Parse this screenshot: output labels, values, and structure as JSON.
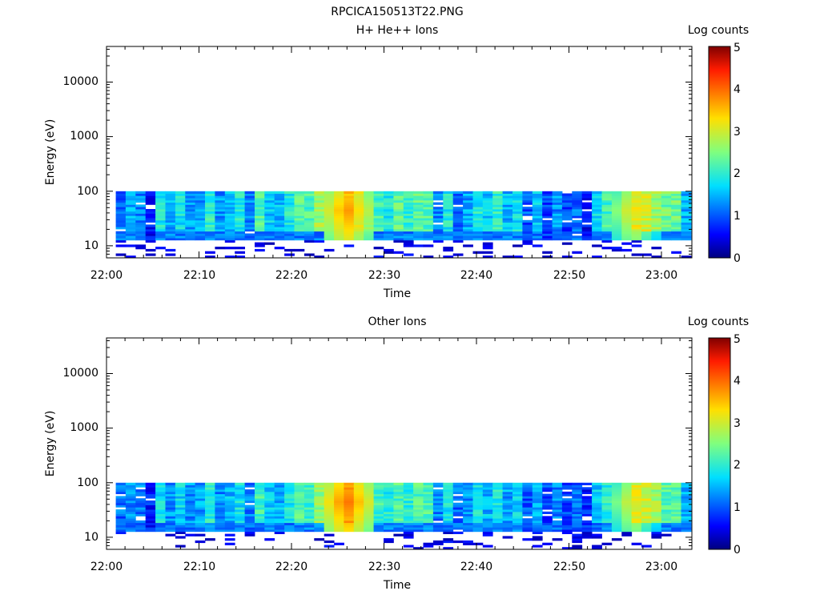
{
  "figure_title": "RPCICA150513T22.PNG",
  "colorbar_label": "Log counts",
  "chart_data": [
    {
      "type": "heatmap",
      "title": "H+ He++ Ions",
      "xlabel": "Time",
      "ylabel": "Energy (eV)",
      "x_ticks": [
        "22:00",
        "22:10",
        "22:20",
        "22:30",
        "22:40",
        "22:50",
        "23:00"
      ],
      "y_ticks": [
        "10",
        "100",
        "1000",
        "10000"
      ],
      "y_scale": "log",
      "xlim": [
        "22:00",
        "23:03"
      ],
      "ylim": [
        6,
        45000
      ],
      "colorbar": {
        "label": "Log counts",
        "range": [
          0,
          5
        ],
        "ticks": [
          "0",
          "1",
          "2",
          "3",
          "4",
          "5"
        ]
      },
      "profile": [
        1.1,
        1.4,
        1.2,
        0.6,
        1.9,
        1.4,
        1.8,
        1.4,
        1.4,
        2.0,
        1.3,
        1.6,
        1.9,
        1.2,
        2.2,
        1.6,
        1.5,
        1.9,
        2.3,
        2.2,
        2.7,
        2.5,
        2.9,
        3.3,
        2.9,
        2.5,
        2.1,
        1.9,
        2.3,
        2.0,
        2.3,
        2.2,
        1.2,
        1.9,
        1.1,
        1.4,
        1.9,
        1.6,
        2.0,
        1.5,
        1.8,
        1.0,
        1.6,
        0.9,
        1.3,
        0.9,
        1.1,
        0.6,
        1.7,
        2.1,
        1.8,
        2.5,
        3.1,
        3.0,
        2.7,
        2.4,
        2.4,
        1.5
      ],
      "hot_spots": [
        {
          "time": "22:26",
          "level": 3.8
        },
        {
          "time": "22:57",
          "level": 3.3
        }
      ]
    },
    {
      "type": "heatmap",
      "title": "Other Ions",
      "xlabel": "Time",
      "ylabel": "Energy (eV)",
      "x_ticks": [
        "22:00",
        "22:10",
        "22:20",
        "22:30",
        "22:40",
        "22:50",
        "23:00"
      ],
      "y_ticks": [
        "10",
        "100",
        "1000",
        "10000"
      ],
      "y_scale": "log",
      "xlim": [
        "22:00",
        "23:03"
      ],
      "ylim": [
        6,
        45000
      ],
      "colorbar": {
        "label": "Log counts",
        "range": [
          0,
          5
        ],
        "ticks": [
          "0",
          "1",
          "2",
          "3",
          "4",
          "5"
        ]
      },
      "profile": [
        1.1,
        1.3,
        1.2,
        0.7,
        1.8,
        1.3,
        1.7,
        1.3,
        1.4,
        1.9,
        1.3,
        1.5,
        1.8,
        1.2,
        2.1,
        1.6,
        1.5,
        1.9,
        2.3,
        2.1,
        2.6,
        2.5,
        2.9,
        3.5,
        3.0,
        2.5,
        2.1,
        1.9,
        2.2,
        2.0,
        2.2,
        2.2,
        1.2,
        1.8,
        1.1,
        1.3,
        1.8,
        1.5,
        1.9,
        1.4,
        1.7,
        1.0,
        1.5,
        0.9,
        1.2,
        0.9,
        1.1,
        0.7,
        1.6,
        2.0,
        1.8,
        2.4,
        3.0,
        3.0,
        2.7,
        2.3,
        2.3,
        1.4
      ],
      "hot_spots": [
        {
          "time": "22:26",
          "level": 4.0
        },
        {
          "time": "22:57",
          "level": 3.2
        }
      ]
    }
  ]
}
